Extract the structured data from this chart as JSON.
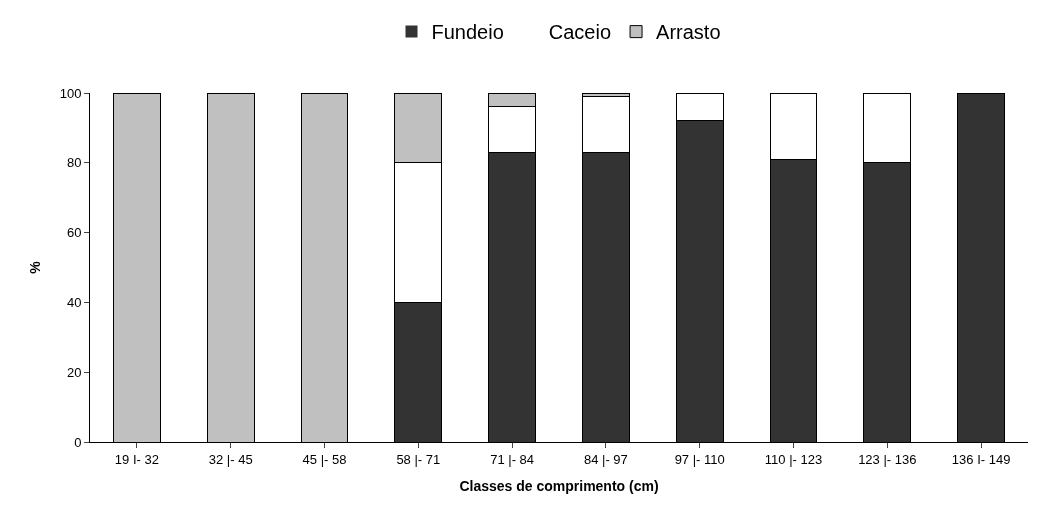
{
  "chart_data": {
    "type": "bar",
    "stacked": true,
    "xlabel": "Classes de comprimento (cm)",
    "ylabel": "%",
    "categories": [
      "19 I- 32",
      "32 |- 45",
      "45 |- 58",
      "58 |- 71",
      "71 |- 84",
      "84 |- 97",
      "97 |- 110",
      "110 |- 123",
      "123 |- 136",
      "136 I- 149"
    ],
    "series": [
      {
        "name": "Fundeio",
        "color": "#333333",
        "values": [
          0,
          0,
          0,
          40,
          83,
          83,
          92,
          81,
          80,
          100
        ]
      },
      {
        "name": "Caceio",
        "color": "#ffffff",
        "values": [
          0,
          0,
          0,
          40,
          13,
          16,
          8,
          19,
          20,
          0
        ]
      },
      {
        "name": "Arrasto",
        "color": "#c0c0c0",
        "values": [
          100,
          100,
          100,
          20,
          4,
          1,
          0,
          0,
          0,
          0
        ]
      }
    ],
    "ylim": [
      0,
      100
    ],
    "yticks": [
      0,
      20,
      40,
      60,
      80,
      100
    ],
    "legend": "top"
  }
}
